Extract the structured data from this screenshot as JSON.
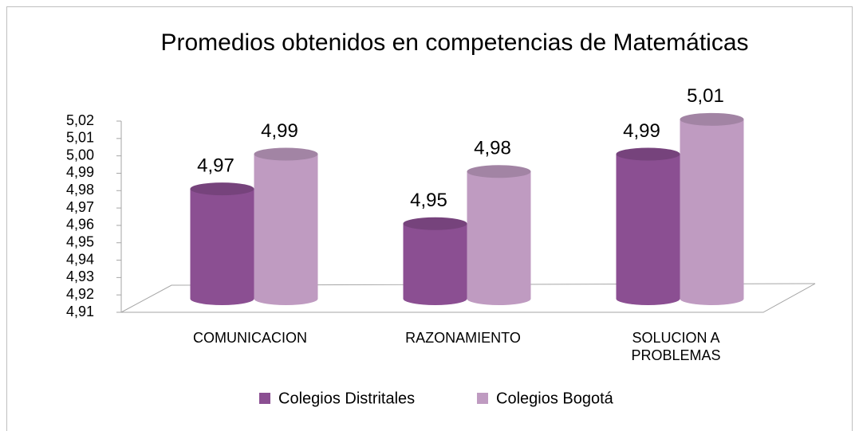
{
  "chart_data": {
    "type": "bar3d",
    "title": "Promedios obtenidos en competencias de Matemáticas",
    "categories": [
      "COMUNICACION",
      "RAZONAMIENTO",
      "SOLUCION A PROBLEMAS"
    ],
    "series": [
      {
        "name": "Colegios Distritales",
        "color": "#8b4f92",
        "values": [
          4.97,
          4.95,
          4.99
        ],
        "value_labels": [
          "4,97",
          "4,95",
          "4,99"
        ]
      },
      {
        "name": "Colegios Bogotá",
        "color": "#bf9bc1",
        "values": [
          4.99,
          4.98,
          5.01
        ],
        "value_labels": [
          "4,99",
          "4,98",
          "5,01"
        ]
      }
    ],
    "ylim": [
      4.91,
      5.02
    ],
    "yticks": [
      {
        "value": 4.91,
        "label": "4,91"
      },
      {
        "value": 4.92,
        "label": "4,92"
      },
      {
        "value": 4.93,
        "label": "4,93"
      },
      {
        "value": 4.94,
        "label": "4,94"
      },
      {
        "value": 4.95,
        "label": "4,95"
      },
      {
        "value": 4.96,
        "label": "4,96"
      },
      {
        "value": 4.97,
        "label": "4,97"
      },
      {
        "value": 4.98,
        "label": "4,98"
      },
      {
        "value": 4.99,
        "label": "4,99"
      },
      {
        "value": 5.0,
        "label": "5,00"
      },
      {
        "value": 5.01,
        "label": "5,01"
      },
      {
        "value": 5.02,
        "label": "5,02"
      }
    ],
    "legend": "bottom"
  }
}
